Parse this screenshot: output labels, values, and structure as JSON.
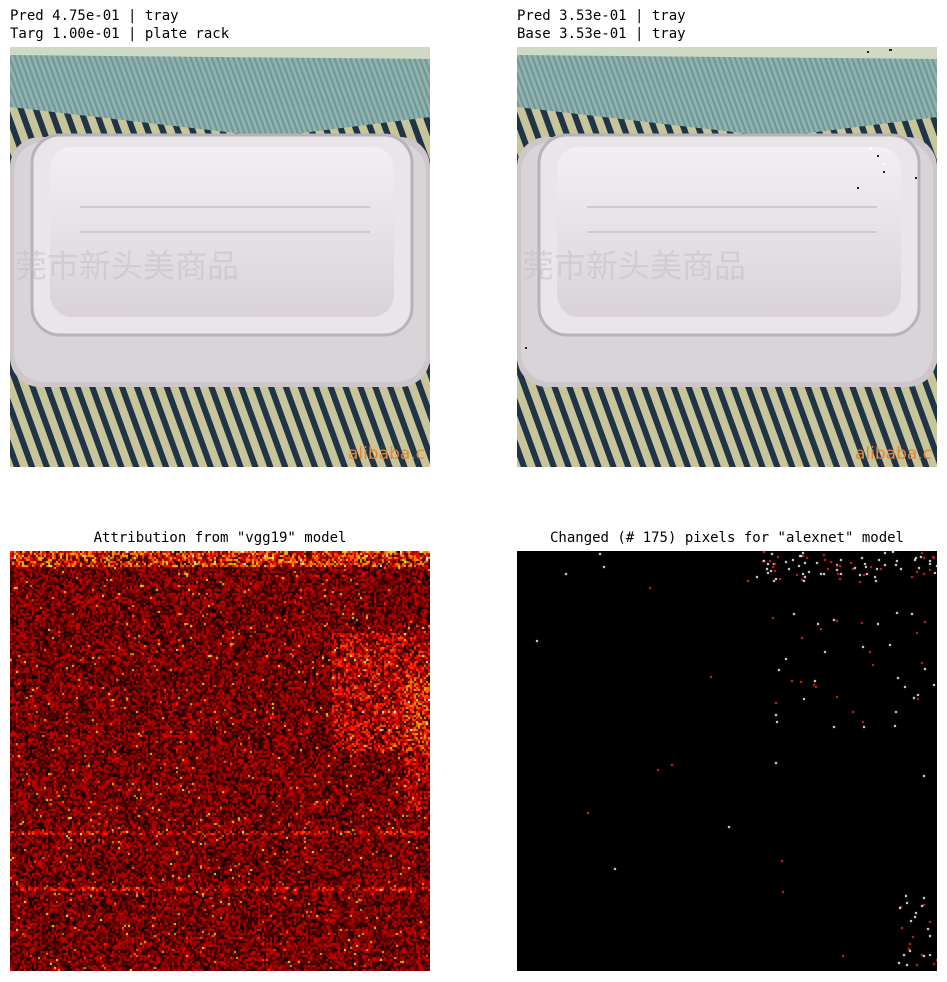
{
  "panels": {
    "top_left": {
      "line1": "Pred 4.75e-01 | tray",
      "line2": "Targ 1.00e-01 | plate rack",
      "watermark": "alibaba.c"
    },
    "top_right": {
      "line1": "Pred 3.53e-01 | tray",
      "line2": "Base 3.53e-01 | tray",
      "watermark": "alibaba.c"
    },
    "bottom_left": {
      "title": "Attribution from \"vgg19\" model",
      "colormap": "hot"
    },
    "bottom_right": {
      "title": "Changed (# 175) pixels for \"alexnet\" model",
      "changed_count": 175
    }
  },
  "colors": {
    "mat_stripe_dark": "#1f3447",
    "mat_stripe_light": "#c8c59a",
    "mat_top_teal": "#8fb2b0",
    "plate": "#e6e2e6",
    "plate_edge": "#bdb6bd",
    "watermark": "#e0863a",
    "changed_white": "#ffffff",
    "changed_red": "#ff2020"
  }
}
